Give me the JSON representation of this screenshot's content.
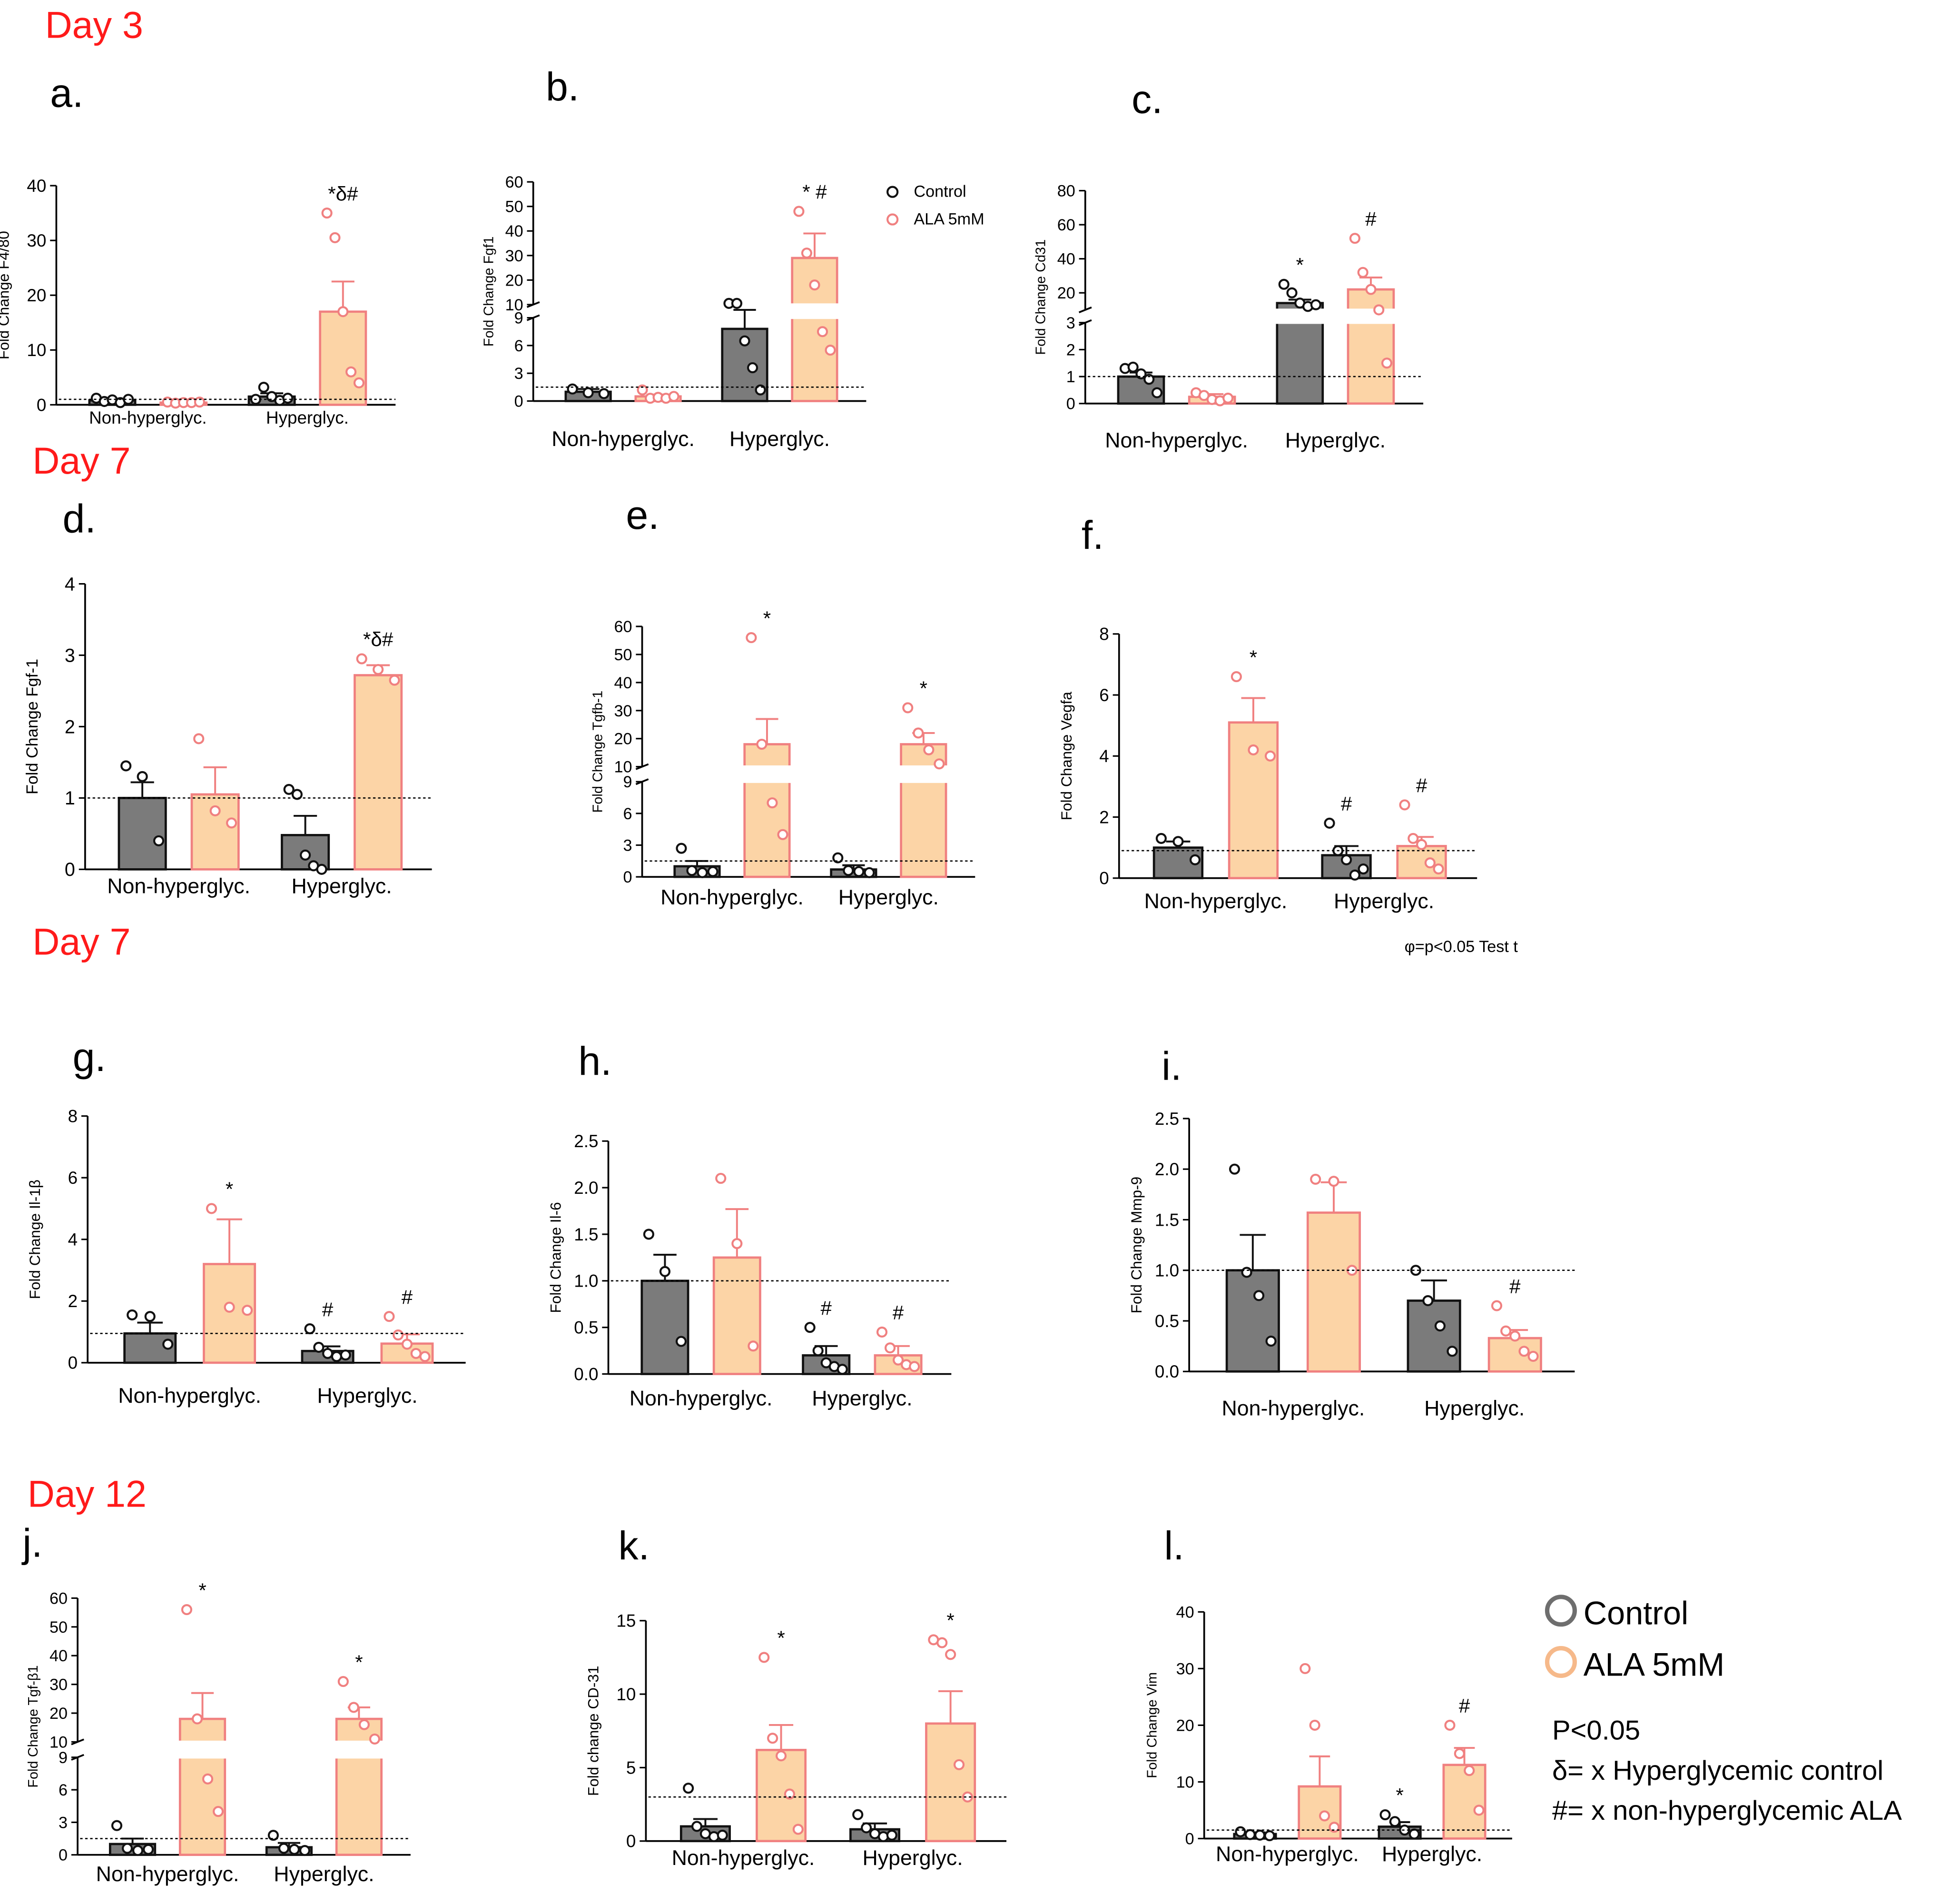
{
  "sections": [
    {
      "id": "day3",
      "label": "Day 3"
    },
    {
      "id": "day7a",
      "label": "Day 7"
    },
    {
      "id": "day7b",
      "label": "Day 7"
    },
    {
      "id": "day12",
      "label": "Day 12"
    }
  ],
  "colors": {
    "control_fill": "#7b7b7b",
    "control_stroke": "#111111",
    "ala_fill": "#fcd4a6",
    "ala_stroke": "#f08080",
    "section_label": "#ff1a1a"
  },
  "categories": [
    "Non-hyperglyc.",
    "Hyperglyc."
  ],
  "series_names": [
    "Control",
    "ALA 5mM"
  ],
  "inset_legend": {
    "entries": [
      "Control",
      "ALA 5mM"
    ]
  },
  "legend": {
    "entries": [
      "Control",
      "ALA 5mM"
    ],
    "notes": [
      "P<0.05",
      "δ= x Hyperglycemic control",
      "#= x non-hyperglycemic ALA"
    ]
  },
  "footnote": "φ=p<0.05 Test t",
  "chart_data": [
    {
      "panel": "a.",
      "type": "bar",
      "ylabel": "Fold Change F4/80",
      "ylim": [
        0,
        40
      ],
      "yticks": [
        0,
        10,
        20,
        30,
        40
      ],
      "reference_line": 1,
      "categories": [
        "Non-hyperglyc.",
        "Hyperglyc."
      ],
      "series": [
        {
          "name": "Control",
          "values": [
            0.8,
            1.5
          ],
          "errors": [
            0.3,
            0.6
          ],
          "points": [
            [
              1.2,
              0.6,
              0.9,
              0.4,
              1.0
            ],
            [
              1.0,
              3.2,
              1.5,
              0.8,
              1.2
            ]
          ]
        },
        {
          "name": "ALA 5mM",
          "values": [
            0.4,
            17
          ],
          "errors": [
            0.1,
            5.5
          ],
          "points": [
            [
              0.5,
              0.3,
              0.4,
              0.4,
              0.5
            ],
            [
              35,
              30.5,
              17,
              6,
              4
            ]
          ]
        }
      ],
      "annotations": [
        "",
        "",
        "",
        "*δ#"
      ]
    },
    {
      "panel": "b.",
      "type": "bar",
      "ylabel": "Fold Change Fgf1",
      "broken_axis": {
        "lower": [
          0,
          9
        ],
        "upper": [
          10,
          60
        ],
        "lower_ticks": [
          0,
          3,
          6,
          9
        ],
        "upper_ticks": [
          10,
          20,
          30,
          40,
          50,
          60
        ]
      },
      "reference_line": 1.5,
      "categories": [
        "Non-hyperglyc.",
        "Hyperglyc."
      ],
      "series": [
        {
          "name": "Control",
          "values": [
            1.0,
            7.8
          ],
          "errors": [
            0.3,
            1.8
          ],
          "points": [
            [
              1.3,
              0.9,
              0.8
            ],
            [
              10.5,
              10.5,
              6.5,
              3.6,
              1.2
            ]
          ]
        },
        {
          "name": "ALA 5mM",
          "values": [
            0.5,
            29
          ],
          "errors": [
            0.2,
            10
          ],
          "points": [
            [
              1.2,
              0.3,
              0.4,
              0.3,
              0.5
            ],
            [
              48,
              31,
              18,
              7.5,
              5.5
            ]
          ]
        }
      ],
      "annotations": [
        "",
        "",
        "",
        "* #"
      ]
    },
    {
      "panel": "c.",
      "type": "bar",
      "ylabel": "Fold Change Cd31",
      "broken_axis": {
        "lower": [
          0,
          3
        ],
        "upper": [
          10,
          80
        ],
        "lower_ticks": [
          0,
          1,
          2,
          3
        ],
        "upper_ticks": [
          20,
          40,
          60,
          80
        ]
      },
      "reference_line": 1,
      "categories": [
        "Non-hyperglyc.",
        "Hyperglyc."
      ],
      "series": [
        {
          "name": "Control",
          "values": [
            1.0,
            14
          ],
          "errors": [
            0.15,
            2
          ],
          "points": [
            [
              1.3,
              1.35,
              1.1,
              0.9,
              0.4
            ],
            [
              25,
              20,
              14,
              12,
              13
            ]
          ]
        },
        {
          "name": "ALA 5mM",
          "values": [
            0.25,
            22
          ],
          "errors": [
            0.1,
            7
          ],
          "points": [
            [
              0.4,
              0.3,
              0.15,
              0.1,
              0.2
            ],
            [
              52,
              32,
              22,
              10,
              1.5
            ]
          ]
        }
      ],
      "annotations": [
        "",
        "",
        "*",
        "#"
      ]
    },
    {
      "panel": "d.",
      "type": "bar",
      "ylabel": "Fold Change Fgf-1",
      "ylim": [
        0,
        4
      ],
      "yticks": [
        0,
        1,
        2,
        3,
        4
      ],
      "reference_line": 1,
      "categories": [
        "Non-hyperglyc.",
        "Hyperglyc."
      ],
      "series": [
        {
          "name": "Control",
          "values": [
            1.0,
            0.48
          ],
          "errors": [
            0.22,
            0.27
          ],
          "points": [
            [
              1.45,
              1.3,
              0.4
            ],
            [
              1.12,
              1.05,
              0.2,
              0.05,
              0.0
            ]
          ]
        },
        {
          "name": "ALA 5mM",
          "values": [
            1.05,
            2.72
          ],
          "errors": [
            0.38,
            0.14
          ],
          "points": [
            [
              1.83,
              0.82,
              0.65
            ],
            [
              2.95,
              2.8,
              2.65
            ]
          ]
        }
      ],
      "annotations": [
        "",
        "",
        "",
        "*δ#"
      ]
    },
    {
      "panel": "e.",
      "type": "bar",
      "ylabel": "Fold Change Tgfb-1",
      "broken_axis": {
        "lower": [
          0,
          9
        ],
        "upper": [
          10,
          60
        ],
        "lower_ticks": [
          0,
          3,
          6,
          9
        ],
        "upper_ticks": [
          10,
          20,
          30,
          40,
          50,
          60
        ]
      },
      "reference_line": 1.5,
      "categories": [
        "Non-hyperglyc.",
        "Hyperglyc."
      ],
      "series": [
        {
          "name": "Control",
          "values": [
            1.0,
            0.7
          ],
          "errors": [
            0.5,
            0.4
          ],
          "points": [
            [
              2.7,
              0.6,
              0.4,
              0.5
            ],
            [
              1.8,
              0.6,
              0.5,
              0.4
            ]
          ]
        },
        {
          "name": "ALA 5mM",
          "values": [
            18,
            18
          ],
          "errors": [
            9,
            4
          ],
          "points": [
            [
              56,
              18,
              7,
              4
            ],
            [
              31,
              22,
              16,
              11
            ]
          ]
        }
      ],
      "annotations": [
        "",
        "*",
        "",
        "*"
      ]
    },
    {
      "panel": "f.",
      "type": "bar",
      "ylabel": "Fold Change Vegfa",
      "ylim": [
        0,
        8
      ],
      "yticks": [
        0,
        2,
        4,
        6,
        8
      ],
      "reference_line": 0.9,
      "categories": [
        "Non-hyperglyc.",
        "Hyperglyc."
      ],
      "series": [
        {
          "name": "Control",
          "values": [
            1.0,
            0.75
          ],
          "errors": [
            0.2,
            0.3
          ],
          "points": [
            [
              1.3,
              1.2,
              0.6
            ],
            [
              1.8,
              0.9,
              0.6,
              0.1,
              0.3
            ]
          ]
        },
        {
          "name": "ALA 5mM",
          "values": [
            5.1,
            1.05
          ],
          "errors": [
            0.8,
            0.3
          ],
          "points": [
            [
              6.6,
              4.2,
              4.0
            ],
            [
              2.4,
              1.3,
              1.1,
              0.5,
              0.3
            ]
          ]
        }
      ],
      "annotations": [
        "",
        "*",
        "#",
        "#"
      ]
    },
    {
      "panel": "g.",
      "type": "bar",
      "ylabel": "Fold Change Il-1β",
      "ylim": [
        0,
        8
      ],
      "yticks": [
        0,
        2,
        4,
        6,
        8
      ],
      "reference_line": 0.95,
      "categories": [
        "Non-hyperglyc.",
        "Hyperglyc."
      ],
      "series": [
        {
          "name": "Control",
          "values": [
            0.95,
            0.38
          ],
          "errors": [
            0.35,
            0.15
          ],
          "points": [
            [
              1.55,
              1.5,
              0.6
            ],
            [
              1.1,
              0.5,
              0.3,
              0.2,
              0.25
            ]
          ]
        },
        {
          "name": "ALA 5mM",
          "values": [
            3.2,
            0.62
          ],
          "errors": [
            1.45,
            0.3
          ],
          "points": [
            [
              5.0,
              1.8,
              1.7
            ],
            [
              1.5,
              0.9,
              0.6,
              0.3,
              0.2
            ]
          ]
        }
      ],
      "annotations": [
        "",
        "*",
        "#",
        "#"
      ]
    },
    {
      "panel": "h.",
      "type": "bar",
      "ylabel": "Fold Change Il-6",
      "ylim": [
        0,
        2.5
      ],
      "yticks": [
        0.0,
        0.5,
        1.0,
        1.5,
        2.0,
        2.5
      ],
      "reference_line": 1.0,
      "categories": [
        "Non-hyperglyc.",
        "Hyperglyc."
      ],
      "series": [
        {
          "name": "Control",
          "values": [
            1.0,
            0.2
          ],
          "errors": [
            0.28,
            0.1
          ],
          "points": [
            [
              1.5,
              1.1,
              0.35
            ],
            [
              0.5,
              0.25,
              0.12,
              0.08,
              0.05
            ]
          ]
        },
        {
          "name": "ALA 5mM",
          "values": [
            1.25,
            0.2
          ],
          "errors": [
            0.52,
            0.1
          ],
          "points": [
            [
              2.1,
              1.4,
              0.3
            ],
            [
              0.45,
              0.28,
              0.15,
              0.1,
              0.08
            ]
          ]
        }
      ],
      "annotations": [
        "",
        "",
        "#",
        "#"
      ]
    },
    {
      "panel": "i.",
      "type": "bar",
      "ylabel": "Fold Change Mmp-9",
      "ylim": [
        0,
        2.5
      ],
      "yticks": [
        0.0,
        0.5,
        1.0,
        1.5,
        2.0,
        2.5
      ],
      "reference_line": 1.0,
      "categories": [
        "Non-hyperglyc.",
        "Hyperglyc."
      ],
      "series": [
        {
          "name": "Control",
          "values": [
            1.0,
            0.7
          ],
          "errors": [
            0.35,
            0.2
          ],
          "points": [
            [
              2.0,
              0.98,
              0.75,
              0.3
            ],
            [
              1.0,
              0.7,
              0.45,
              0.2
            ]
          ]
        },
        {
          "name": "ALA 5mM",
          "values": [
            1.57,
            0.33
          ],
          "errors": [
            0.3,
            0.08
          ],
          "points": [
            [
              1.9,
              1.88,
              1.0
            ],
            [
              0.65,
              0.4,
              0.35,
              0.2,
              0.15
            ]
          ]
        }
      ],
      "annotations": [
        "",
        "",
        "",
        "#"
      ]
    },
    {
      "panel": "j.",
      "type": "bar",
      "ylabel": "Fold Change Tgf-β1",
      "broken_axis": {
        "lower": [
          0,
          9
        ],
        "upper": [
          10,
          60
        ],
        "lower_ticks": [
          0,
          3,
          6,
          9
        ],
        "upper_ticks": [
          10,
          20,
          30,
          40,
          50,
          60
        ]
      },
      "reference_line": 1.5,
      "categories": [
        "Non-hyperglyc.",
        "Hyperglyc."
      ],
      "series": [
        {
          "name": "Control",
          "values": [
            1.0,
            0.7
          ],
          "errors": [
            0.5,
            0.4
          ],
          "points": [
            [
              2.7,
              0.6,
              0.4,
              0.5
            ],
            [
              1.8,
              0.6,
              0.5,
              0.4
            ]
          ]
        },
        {
          "name": "ALA 5mM",
          "values": [
            18,
            18
          ],
          "errors": [
            9,
            4
          ],
          "points": [
            [
              56,
              18,
              7,
              4
            ],
            [
              31,
              22,
              16,
              11
            ]
          ]
        }
      ],
      "annotations": [
        "",
        "*",
        "",
        "*"
      ]
    },
    {
      "panel": "k.",
      "type": "bar",
      "ylabel": "Fold change CD-31",
      "ylim": [
        0,
        15
      ],
      "yticks": [
        0,
        5,
        10,
        15
      ],
      "reference_line": 3,
      "categories": [
        "Non-hyperglyc.",
        "Hyperglyc."
      ],
      "series": [
        {
          "name": "Control",
          "values": [
            1.0,
            0.8
          ],
          "errors": [
            0.5,
            0.4
          ],
          "points": [
            [
              3.6,
              1.0,
              0.5,
              0.3,
              0.4
            ],
            [
              1.8,
              0.9,
              0.5,
              0.3,
              0.4
            ]
          ]
        },
        {
          "name": "ALA 5mM",
          "values": [
            6.2,
            8.0
          ],
          "errors": [
            1.7,
            2.2
          ],
          "points": [
            [
              12.5,
              7.0,
              5.8,
              3.2,
              0.8
            ],
            [
              13.7,
              13.5,
              12.7,
              5.2,
              3.0
            ]
          ]
        }
      ],
      "annotations": [
        "",
        "*",
        "",
        "*"
      ]
    },
    {
      "panel": "l.",
      "type": "bar",
      "ylabel": "Fold Change Vim",
      "ylim": [
        0,
        40
      ],
      "yticks": [
        0,
        10,
        20,
        30,
        40
      ],
      "reference_line": 1.5,
      "categories": [
        "Non-hyperglyc.",
        "Hyperglyc."
      ],
      "series": [
        {
          "name": "Control",
          "values": [
            0.8,
            2.1
          ],
          "errors": [
            0.3,
            0.8
          ],
          "points": [
            [
              1.2,
              0.7,
              0.6,
              0.5
            ],
            [
              4.2,
              3.0,
              1.5,
              0.8
            ]
          ]
        },
        {
          "name": "ALA 5mM",
          "values": [
            9.2,
            13
          ],
          "errors": [
            5.3,
            3
          ],
          "points": [
            [
              30,
              20,
              4,
              2
            ],
            [
              20,
              15,
              12,
              5
            ]
          ]
        }
      ],
      "annotations": [
        "",
        "",
        "*",
        "#"
      ]
    }
  ]
}
